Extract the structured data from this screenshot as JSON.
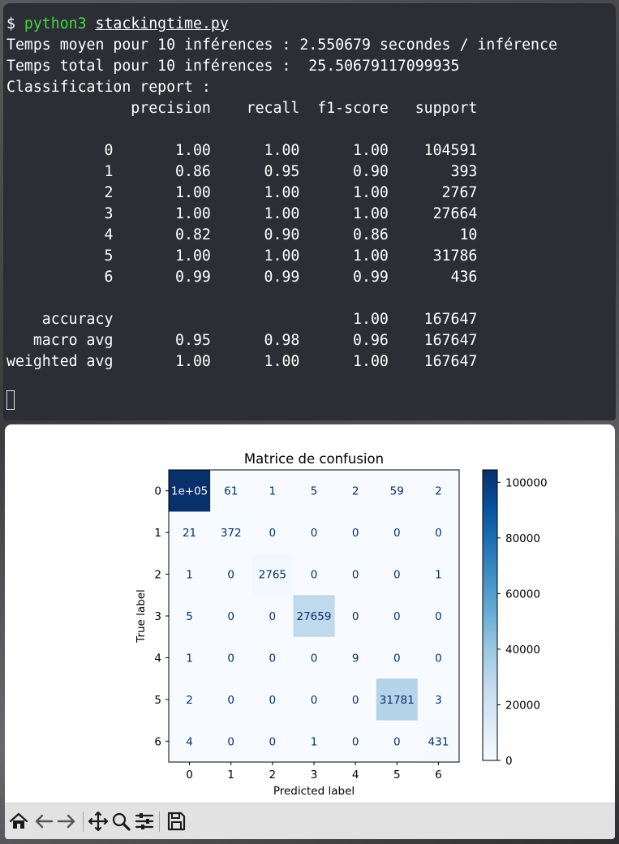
{
  "terminal": {
    "prompt": "$ ",
    "command": "python3",
    "command_arg": "stackingtime.py",
    "lines": [
      "Temps moyen pour 10 inférences : 2.550679 secondes / inférence",
      "Temps total pour 10 inférences :  25.50679117099935",
      "Classification report :",
      "              precision    recall  f1-score   support",
      "",
      "           0       1.00      1.00      1.00    104591",
      "           1       0.86      0.95      0.90       393",
      "           2       1.00      1.00      1.00      2767",
      "           3       1.00      1.00      1.00     27664",
      "           4       0.82      0.90      0.86        10",
      "           5       1.00      1.00      1.00     31786",
      "           6       0.99      0.99      0.99       436",
      "",
      "    accuracy                           1.00    167647",
      "   macro avg       0.95      0.98      0.96    167647",
      "weighted avg       1.00      1.00      1.00    167647"
    ]
  },
  "toolbar": {
    "icons": [
      "home-icon",
      "back-arrow-icon",
      "forward-arrow-icon",
      "pan-move-icon",
      "zoom-magnifier-icon",
      "configure-subplots-icon",
      "save-floppy-icon"
    ]
  },
  "chart_data": {
    "type": "heatmap",
    "title": "Matrice de confusion",
    "xlabel": "Predicted label",
    "ylabel": "True label",
    "x_categories": [
      "0",
      "1",
      "2",
      "3",
      "4",
      "5",
      "6"
    ],
    "y_categories": [
      "0",
      "1",
      "2",
      "3",
      "4",
      "5",
      "6"
    ],
    "values": [
      [
        104461,
        61,
        1,
        5,
        2,
        59,
        2
      ],
      [
        21,
        372,
        0,
        0,
        0,
        0,
        0
      ],
      [
        1,
        0,
        2765,
        0,
        0,
        0,
        1
      ],
      [
        5,
        0,
        0,
        27659,
        0,
        0,
        0
      ],
      [
        1,
        0,
        0,
        0,
        9,
        0,
        0
      ],
      [
        2,
        0,
        0,
        0,
        0,
        31781,
        3
      ],
      [
        4,
        0,
        0,
        1,
        0,
        0,
        431
      ]
    ],
    "cell_labels": [
      [
        "1e+05",
        "61",
        "1",
        "5",
        "2",
        "59",
        "2"
      ],
      [
        "21",
        "372",
        "0",
        "0",
        "0",
        "0",
        "0"
      ],
      [
        "1",
        "0",
        "2765",
        "0",
        "0",
        "0",
        "1"
      ],
      [
        "5",
        "0",
        "0",
        "27659",
        "0",
        "0",
        "0"
      ],
      [
        "1",
        "0",
        "0",
        "0",
        "9",
        "0",
        "0"
      ],
      [
        "2",
        "0",
        "0",
        "0",
        "0",
        "31781",
        "3"
      ],
      [
        "4",
        "0",
        "0",
        "1",
        "0",
        "0",
        "431"
      ]
    ],
    "colormap": "Blues",
    "colorbar_range": [
      0,
      104461
    ],
    "colorbar_ticks": [
      0,
      20000,
      40000,
      60000,
      80000,
      100000
    ],
    "colorbar_tick_labels": [
      "0",
      "20000",
      "40000",
      "60000",
      "80000",
      "100000"
    ],
    "colors": {
      "low": "#f7fbff",
      "high": "#08306b",
      "text_dark": "#08306b",
      "text_light": "#f7fbff"
    }
  }
}
